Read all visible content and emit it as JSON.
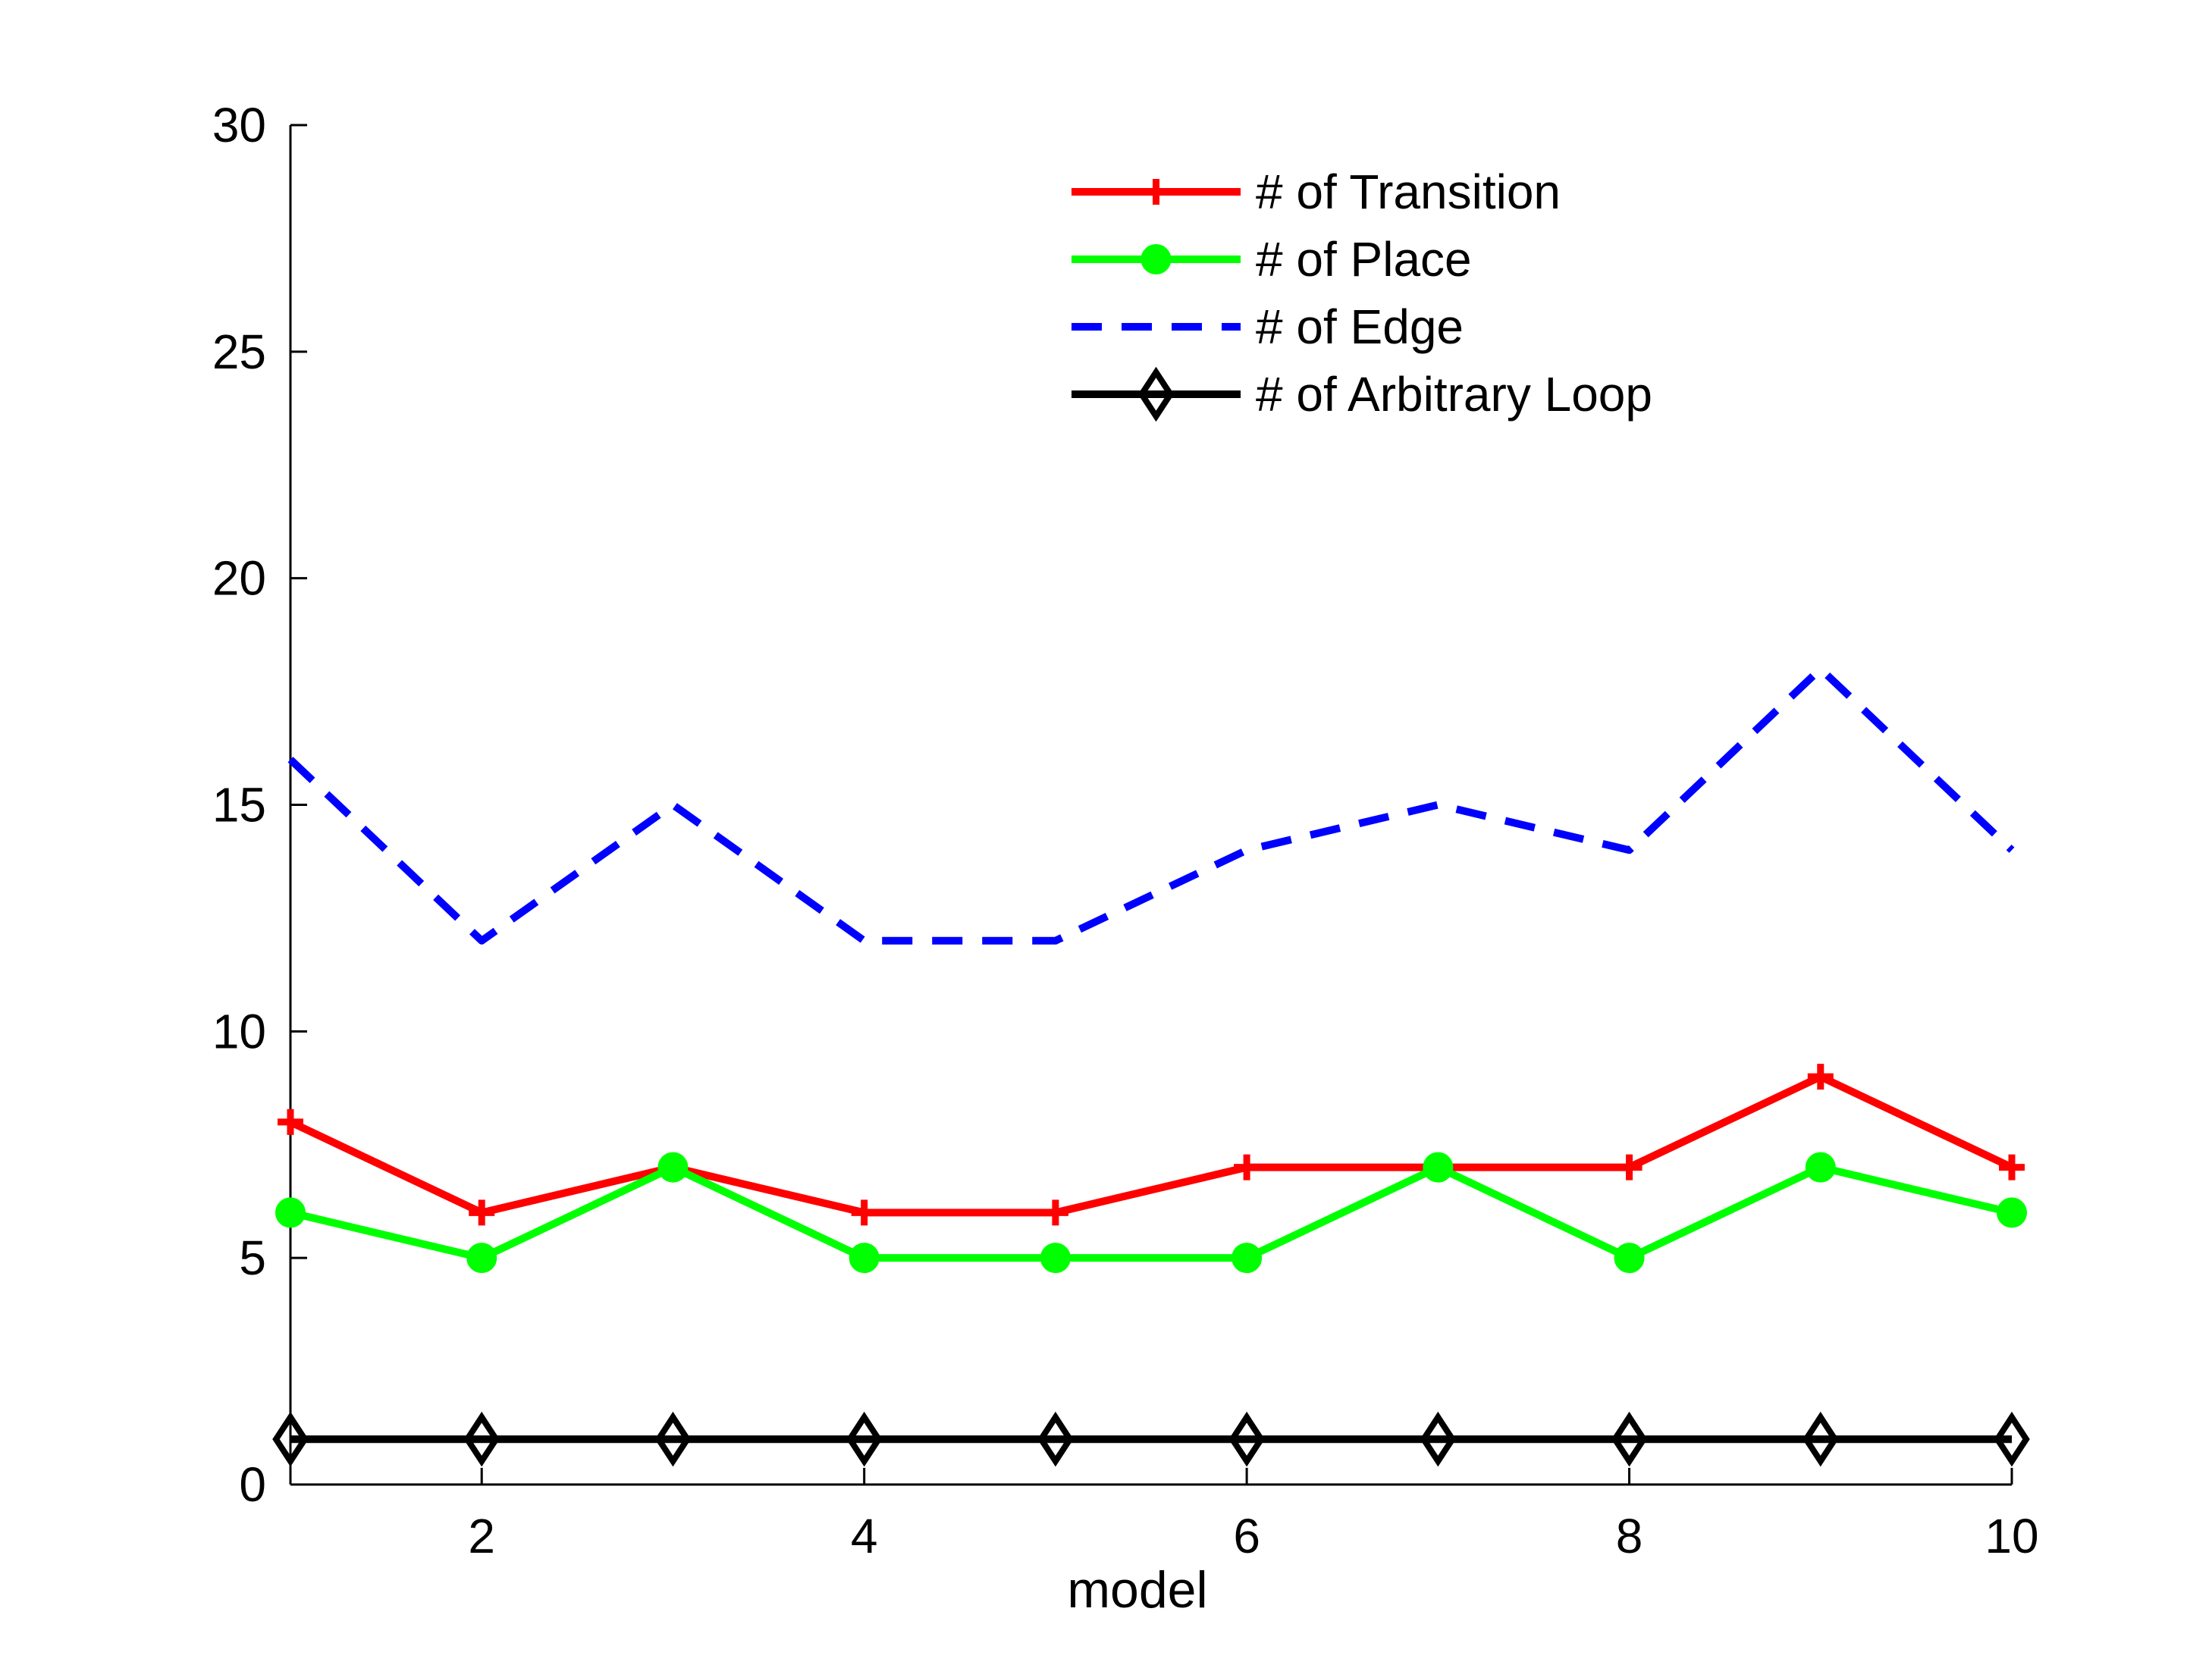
{
  "chart_data": {
    "type": "line",
    "title": "",
    "xlabel": "model",
    "ylabel": "",
    "x": [
      1,
      2,
      3,
      4,
      5,
      6,
      7,
      8,
      9,
      10
    ],
    "xlim": [
      1,
      10
    ],
    "ylim": [
      0,
      30
    ],
    "xticks": [
      2,
      4,
      6,
      8,
      10
    ],
    "yticks": [
      0,
      5,
      10,
      15,
      20,
      25,
      30
    ],
    "grid": false,
    "legend_position": "top-right",
    "series": [
      {
        "name": "# of Transition",
        "values": [
          8,
          6,
          7,
          6,
          6,
          7,
          7,
          7,
          9,
          7
        ],
        "color": "#ff0000",
        "marker": "plus",
        "line_style": "solid"
      },
      {
        "name": "# of Place",
        "values": [
          6,
          5,
          7,
          5,
          5,
          5,
          7,
          5,
          7,
          6
        ],
        "color": "#00ff00",
        "marker": "circle",
        "line_style": "solid"
      },
      {
        "name": "# of Edge",
        "values": [
          16,
          12,
          15,
          12,
          12,
          14,
          15,
          14,
          18,
          14
        ],
        "color": "#0000ff",
        "marker": "none",
        "line_style": "dashed"
      },
      {
        "name": "# of Arbitrary Loop",
        "values": [
          1,
          1,
          1,
          1,
          1,
          1,
          1,
          1,
          1,
          1
        ],
        "color": "#000000",
        "marker": "diamond",
        "line_style": "solid"
      }
    ]
  }
}
